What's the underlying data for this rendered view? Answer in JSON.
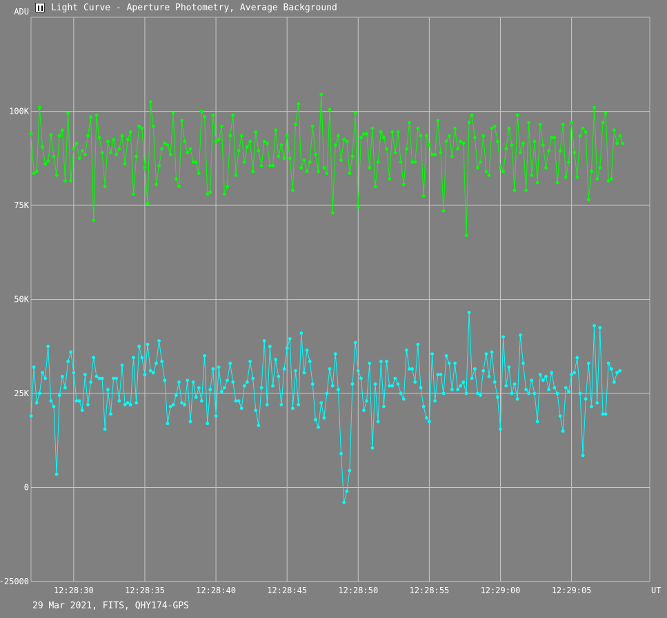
{
  "window": {
    "title": "Light Curve - Aperture Photometry, Average Background",
    "icon": "light-curve-app-icon"
  },
  "footer": {
    "caption": "29 Mar 2021, FITS, QHY174-GPS"
  },
  "chart_data": {
    "type": "line",
    "title": "Light Curve - Aperture Photometry, Average Background",
    "ylabel": "ADU",
    "xlabel": "UT",
    "ylim": [
      -25000,
      125000
    ],
    "xlim": [
      "12:28:27",
      "12:29:10.5"
    ],
    "yticks": [
      {
        "value": -25000,
        "label": "-25000"
      },
      {
        "value": 0,
        "label": "0"
      },
      {
        "value": 25000,
        "label": "25K"
      },
      {
        "value": 50000,
        "label": "50K"
      },
      {
        "value": 75000,
        "label": "75K"
      },
      {
        "value": 100000,
        "label": "100K"
      }
    ],
    "xticks": [
      "12:28:30",
      "12:28:35",
      "12:28:40",
      "12:28:45",
      "12:28:50",
      "12:28:55",
      "12:29:00",
      "12:29:05"
    ],
    "grid": true,
    "series": [
      {
        "color": "#00ff00",
        "x_start": "12:28:27",
        "x_step_s": 0.2,
        "values": [
          94000,
          83500,
          84000,
          101000,
          90500,
          86000,
          86800,
          93800,
          88000,
          83000,
          93500,
          95000,
          81500,
          99500,
          81500,
          90000,
          91500,
          87500,
          89500,
          88500,
          93500,
          98500,
          71000,
          99000,
          93000,
          89000,
          80000,
          92000,
          89000,
          92500,
          88500,
          90000,
          93500,
          86000,
          92500,
          94500,
          78000,
          88000,
          96000,
          95500,
          85000,
          75500,
          102500,
          96000,
          80500,
          85500,
          90000,
          91500,
          91000,
          88500,
          99500,
          82000,
          80000,
          97500,
          92000,
          89000,
          90000,
          86500,
          86500,
          83500,
          100000,
          98500,
          78000,
          78500,
          99000,
          92000,
          92500,
          96000,
          78000,
          80000,
          93500,
          99000,
          83000,
          89500,
          93500,
          86500,
          90500,
          92000,
          84000,
          94500,
          89500,
          85500,
          92000,
          91500,
          85500,
          85500,
          95000,
          88000,
          91000,
          87500,
          93500,
          87500,
          79000,
          96500,
          102000,
          85000,
          87000,
          84000,
          86500,
          96000,
          88500,
          84000,
          104500,
          85000,
          83500,
          100500,
          73000,
          91000,
          93500,
          87000,
          92500,
          92000,
          83500,
          88000,
          99500,
          74500,
          93000,
          94000,
          94000,
          85000,
          95500,
          80000,
          86500,
          94500,
          93000,
          90000,
          82000,
          94500,
          89000,
          94500,
          86500,
          80500,
          90000,
          97000,
          86500,
          86500,
          95500,
          93500,
          77500,
          93500,
          91000,
          88500,
          88500,
          97500,
          89000,
          73500,
          92000,
          93500,
          88000,
          95500,
          90000,
          92000,
          91500,
          67000,
          97000,
          99000,
          93000,
          85000,
          86500,
          93500,
          84000,
          83000,
          95500,
          96000,
          92000,
          85000,
          84000,
          90000,
          95500,
          91000,
          79000,
          99000,
          89000,
          91500,
          79000,
          97000,
          83000,
          92000,
          81000,
          96500,
          91000,
          85000,
          89500,
          93000,
          93000,
          81000,
          89500,
          96500,
          82500,
          86500,
          97000,
          89000,
          82500,
          93500,
          95500,
          94500,
          76500,
          84000,
          101000,
          82000,
          85000,
          97000,
          99500,
          81500,
          82000,
          95000,
          91500
        ],
        "final_values": [
          93500,
          91500
        ]
      },
      {
        "color": "#00ffff",
        "x_start": "12:28:27",
        "x_step_s": 0.2,
        "values": [
          19000,
          32000,
          22500,
          25000,
          30500,
          29000,
          37500,
          23000,
          21500,
          3500,
          24500,
          29500,
          26500,
          33500,
          36000,
          30500,
          23000,
          23000,
          20500,
          30000,
          22000,
          28000,
          34500,
          29500,
          29000,
          29000,
          15500,
          26000,
          19500,
          29000,
          29000,
          23000,
          32500,
          22000,
          22500,
          22000,
          34500,
          22500,
          37500,
          34500,
          30000,
          38000,
          31000,
          30500,
          33000,
          39000,
          33500,
          28500,
          17000,
          21500,
          22000,
          24500,
          28000,
          22500,
          22000,
          28500,
          17500,
          28000,
          24000,
          26500,
          23000,
          35000,
          17000,
          26000,
          31500,
          19000,
          32000,
          25500,
          26500,
          28500,
          33000,
          28000,
          23000,
          23000,
          21000,
          27000,
          28000,
          33500,
          29000,
          20500,
          16500,
          26500,
          39000,
          22000,
          37500,
          27000,
          34000,
          29500,
          22000,
          31500,
          37000,
          39500,
          21000,
          31000,
          22000,
          41000,
          30500,
          36500,
          33500,
          27500,
          18000,
          16000,
          22500,
          18500,
          25000,
          31500,
          27000,
          35500,
          26000,
          9000,
          -4000,
          -1000,
          4500,
          27500,
          38500,
          31000,
          29000,
          20500,
          23000,
          33000,
          10500,
          27500,
          17500,
          33500,
          21500,
          33500,
          27000,
          27000,
          29000,
          27500,
          25000,
          23500,
          36500,
          31500,
          31500,
          28000,
          38000,
          26500,
          21500,
          18500,
          17500,
          35500,
          23000,
          30000,
          30000,
          25000,
          35000,
          33000,
          26000,
          33000,
          26000,
          27000,
          28000,
          25000,
          46500,
          29000,
          31500,
          25000,
          24500,
          31000,
          35500,
          29500,
          36000,
          28000,
          24000,
          15500,
          40000,
          27000,
          32000,
          25000,
          27500,
          23500,
          40500,
          33000,
          26000,
          25000,
          28500,
          25000,
          17500,
          30000,
          28500,
          29500,
          26000,
          30500,
          26500,
          25000,
          19000,
          15000,
          26500,
          25500,
          30000,
          30500,
          34500,
          25000,
          8500,
          23500,
          33000,
          21500,
          43000,
          22500,
          42500,
          19500,
          19500,
          33000,
          31500,
          28000,
          30500,
          31000
        ]
      }
    ]
  }
}
